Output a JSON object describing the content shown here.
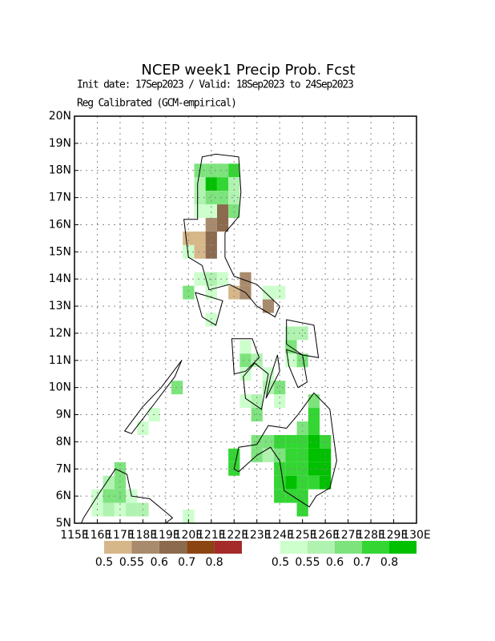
{
  "chart_data": {
    "type": "grid-map",
    "title": "NCEP week1 Precip Prob. Fcst",
    "subtitle": "Init date: 17Sep2023 / Valid: 18Sep2023 to 24Sep2023",
    "subtitle2": "Reg Calibrated (GCM-empirical)",
    "xlim": [
      115,
      130
    ],
    "ylim": [
      5,
      20
    ],
    "xticks": [
      {
        "value": 115,
        "label": "115E"
      },
      {
        "value": 116,
        "label": "116E"
      },
      {
        "value": 117,
        "label": "117E"
      },
      {
        "value": 118,
        "label": "118E"
      },
      {
        "value": 119,
        "label": "119E"
      },
      {
        "value": 120,
        "label": "120E"
      },
      {
        "value": 121,
        "label": "121E"
      },
      {
        "value": 122,
        "label": "122E"
      },
      {
        "value": 123,
        "label": "123E"
      },
      {
        "value": 124,
        "label": "124E"
      },
      {
        "value": 125,
        "label": "125E"
      },
      {
        "value": 126,
        "label": "126E"
      },
      {
        "value": 127,
        "label": "127E"
      },
      {
        "value": 128,
        "label": "128E"
      },
      {
        "value": 129,
        "label": "129E"
      },
      {
        "value": 130,
        "label": "130E"
      }
    ],
    "yticks": [
      {
        "value": 5,
        "label": "5N"
      },
      {
        "value": 6,
        "label": "6N"
      },
      {
        "value": 7,
        "label": "7N"
      },
      {
        "value": 8,
        "label": "8N"
      },
      {
        "value": 9,
        "label": "9N"
      },
      {
        "value": 10,
        "label": "10N"
      },
      {
        "value": 11,
        "label": "11N"
      },
      {
        "value": 12,
        "label": "12N"
      },
      {
        "value": 13,
        "label": "13N"
      },
      {
        "value": 14,
        "label": "14N"
      },
      {
        "value": 15,
        "label": "15N"
      },
      {
        "value": 16,
        "label": "16N"
      },
      {
        "value": 17,
        "label": "17N"
      },
      {
        "value": 18,
        "label": "18N"
      },
      {
        "value": 19,
        "label": "19N"
      },
      {
        "value": 20,
        "label": "20N"
      }
    ],
    "grid": true,
    "dry_scale": {
      "levels": [
        0.5,
        0.55,
        0.6,
        0.7,
        0.8
      ],
      "colors": [
        "#d6b78a",
        "#a88b6d",
        "#8b6a4e",
        "#8b4513",
        "#a52a2a"
      ]
    },
    "wet_scale": {
      "levels": [
        0.5,
        0.55,
        0.6,
        0.7,
        0.8
      ],
      "colors": [
        "#ccffcc",
        "#b0f2b0",
        "#7de37d",
        "#33d633",
        "#00c000"
      ]
    },
    "dry_cells": [
      {
        "lon": 121.5,
        "lat": 16.5,
        "prob": 0.6
      },
      {
        "lon": 121,
        "lat": 16,
        "prob": 0.55
      },
      {
        "lon": 121.5,
        "lat": 16,
        "prob": 0.6
      },
      {
        "lon": 120,
        "lat": 15.5,
        "prob": 0.5
      },
      {
        "lon": 120.5,
        "lat": 15.5,
        "prob": 0.5
      },
      {
        "lon": 121,
        "lat": 15.5,
        "prob": 0.6
      },
      {
        "lon": 120.5,
        "lat": 15,
        "prob": 0.5
      },
      {
        "lon": 121,
        "lat": 15,
        "prob": 0.6
      },
      {
        "lon": 122.5,
        "lat": 14,
        "prob": 0.55
      },
      {
        "lon": 122,
        "lat": 13.5,
        "prob": 0.5
      },
      {
        "lon": 122.5,
        "lat": 13.5,
        "prob": 0.55
      },
      {
        "lon": 123.5,
        "lat": 13,
        "prob": 0.55
      }
    ],
    "wet_cells": [
      {
        "lon": 120.5,
        "lat": 18,
        "prob": 0.6
      },
      {
        "lon": 121,
        "lat": 18,
        "prob": 0.6
      },
      {
        "lon": 121.5,
        "lat": 18,
        "prob": 0.6
      },
      {
        "lon": 122,
        "lat": 18,
        "prob": 0.7
      },
      {
        "lon": 120.5,
        "lat": 17.5,
        "prob": 0.55
      },
      {
        "lon": 121,
        "lat": 17.5,
        "prob": 0.8
      },
      {
        "lon": 121.5,
        "lat": 17.5,
        "prob": 0.7
      },
      {
        "lon": 122,
        "lat": 17.5,
        "prob": 0.55
      },
      {
        "lon": 120.5,
        "lat": 17,
        "prob": 0.55
      },
      {
        "lon": 121,
        "lat": 17,
        "prob": 0.6
      },
      {
        "lon": 121.5,
        "lat": 17,
        "prob": 0.6
      },
      {
        "lon": 122,
        "lat": 17,
        "prob": 0.55
      },
      {
        "lon": 120.5,
        "lat": 16.5,
        "prob": 0.5
      },
      {
        "lon": 121,
        "lat": 16.5,
        "prob": 0.5
      },
      {
        "lon": 122,
        "lat": 16.5,
        "prob": 0.6
      },
      {
        "lon": 120,
        "lat": 15,
        "prob": 0.5
      },
      {
        "lon": 120.5,
        "lat": 14,
        "prob": 0.5
      },
      {
        "lon": 121,
        "lat": 14,
        "prob": 0.55
      },
      {
        "lon": 121.5,
        "lat": 14,
        "prob": 0.5
      },
      {
        "lon": 120,
        "lat": 13.5,
        "prob": 0.6
      },
      {
        "lon": 121,
        "lat": 13.5,
        "prob": 0.5
      },
      {
        "lon": 123.5,
        "lat": 13.5,
        "prob": 0.5
      },
      {
        "lon": 124,
        "lat": 13.5,
        "prob": 0.5
      },
      {
        "lon": 121,
        "lat": 12.5,
        "prob": 0.5
      },
      {
        "lon": 124.5,
        "lat": 12,
        "prob": 0.55
      },
      {
        "lon": 125,
        "lat": 12,
        "prob": 0.55
      },
      {
        "lon": 122.5,
        "lat": 11.5,
        "prob": 0.5
      },
      {
        "lon": 124.5,
        "lat": 11.5,
        "prob": 0.6
      },
      {
        "lon": 122.5,
        "lat": 11,
        "prob": 0.6
      },
      {
        "lon": 123,
        "lat": 11,
        "prob": 0.55
      },
      {
        "lon": 124.5,
        "lat": 11,
        "prob": 0.5
      },
      {
        "lon": 125,
        "lat": 11,
        "prob": 0.6
      },
      {
        "lon": 122.5,
        "lat": 10.5,
        "prob": 0.5
      },
      {
        "lon": 123.5,
        "lat": 10.5,
        "prob": 0.5
      },
      {
        "lon": 119.5,
        "lat": 10,
        "prob": 0.6
      },
      {
        "lon": 123.5,
        "lat": 10,
        "prob": 0.55
      },
      {
        "lon": 124,
        "lat": 10,
        "prob": 0.6
      },
      {
        "lon": 122.5,
        "lat": 9.5,
        "prob": 0.5
      },
      {
        "lon": 123,
        "lat": 9.5,
        "prob": 0.55
      },
      {
        "lon": 124,
        "lat": 9.5,
        "prob": 0.5
      },
      {
        "lon": 125.5,
        "lat": 9.5,
        "prob": 0.6
      },
      {
        "lon": 118.5,
        "lat": 9,
        "prob": 0.5
      },
      {
        "lon": 123,
        "lat": 9,
        "prob": 0.6
      },
      {
        "lon": 125.5,
        "lat": 9,
        "prob": 0.7
      },
      {
        "lon": 118,
        "lat": 8.5,
        "prob": 0.5
      },
      {
        "lon": 125,
        "lat": 8.5,
        "prob": 0.6
      },
      {
        "lon": 125.5,
        "lat": 8.5,
        "prob": 0.7
      },
      {
        "lon": 123,
        "lat": 8,
        "prob": 0.6
      },
      {
        "lon": 123.5,
        "lat": 8,
        "prob": 0.6
      },
      {
        "lon": 124,
        "lat": 8,
        "prob": 0.7
      },
      {
        "lon": 124.5,
        "lat": 8,
        "prob": 0.7
      },
      {
        "lon": 125,
        "lat": 8,
        "prob": 0.7
      },
      {
        "lon": 125.5,
        "lat": 8,
        "prob": 0.8
      },
      {
        "lon": 126,
        "lat": 8,
        "prob": 0.7
      },
      {
        "lon": 122,
        "lat": 7.5,
        "prob": 0.7
      },
      {
        "lon": 123,
        "lat": 7.5,
        "prob": 0.6
      },
      {
        "lon": 123.5,
        "lat": 7.5,
        "prob": 0.55
      },
      {
        "lon": 124,
        "lat": 7.5,
        "prob": 0.6
      },
      {
        "lon": 124.5,
        "lat": 7.5,
        "prob": 0.7
      },
      {
        "lon": 125,
        "lat": 7.5,
        "prob": 0.7
      },
      {
        "lon": 125.5,
        "lat": 7.5,
        "prob": 0.8
      },
      {
        "lon": 126,
        "lat": 7.5,
        "prob": 0.8
      },
      {
        "lon": 122,
        "lat": 7,
        "prob": 0.7
      },
      {
        "lon": 124,
        "lat": 7,
        "prob": 0.7
      },
      {
        "lon": 124.5,
        "lat": 7,
        "prob": 0.7
      },
      {
        "lon": 125,
        "lat": 7,
        "prob": 0.7
      },
      {
        "lon": 125.5,
        "lat": 7,
        "prob": 0.8
      },
      {
        "lon": 126,
        "lat": 7,
        "prob": 0.8
      },
      {
        "lon": 124,
        "lat": 6.5,
        "prob": 0.7
      },
      {
        "lon": 124.5,
        "lat": 6.5,
        "prob": 0.8
      },
      {
        "lon": 125,
        "lat": 6.5,
        "prob": 0.7
      },
      {
        "lon": 125.5,
        "lat": 6.5,
        "prob": 0.7
      },
      {
        "lon": 126,
        "lat": 6.5,
        "prob": 0.8
      },
      {
        "lon": 124,
        "lat": 6,
        "prob": 0.7
      },
      {
        "lon": 124.5,
        "lat": 6,
        "prob": 0.7
      },
      {
        "lon": 125,
        "lat": 6,
        "prob": 0.7
      },
      {
        "lon": 125,
        "lat": 5.5,
        "prob": 0.7
      },
      {
        "lon": 117,
        "lat": 7,
        "prob": 0.6
      },
      {
        "lon": 116.5,
        "lat": 6.5,
        "prob": 0.55
      },
      {
        "lon": 117,
        "lat": 6.5,
        "prob": 0.6
      },
      {
        "lon": 116,
        "lat": 6,
        "prob": 0.5
      },
      {
        "lon": 116.5,
        "lat": 6,
        "prob": 0.6
      },
      {
        "lon": 117,
        "lat": 6,
        "prob": 0.6
      },
      {
        "lon": 117.5,
        "lat": 6,
        "prob": 0.5
      },
      {
        "lon": 116,
        "lat": 5.5,
        "prob": 0.5
      },
      {
        "lon": 116.5,
        "lat": 5.5,
        "prob": 0.55
      },
      {
        "lon": 117,
        "lat": 5.5,
        "prob": 0.5
      },
      {
        "lon": 117.5,
        "lat": 5.5,
        "prob": 0.55
      },
      {
        "lon": 118,
        "lat": 5.5,
        "prob": 0.55
      },
      {
        "lon": 120,
        "lat": 5.25,
        "prob": 0.5
      }
    ]
  }
}
